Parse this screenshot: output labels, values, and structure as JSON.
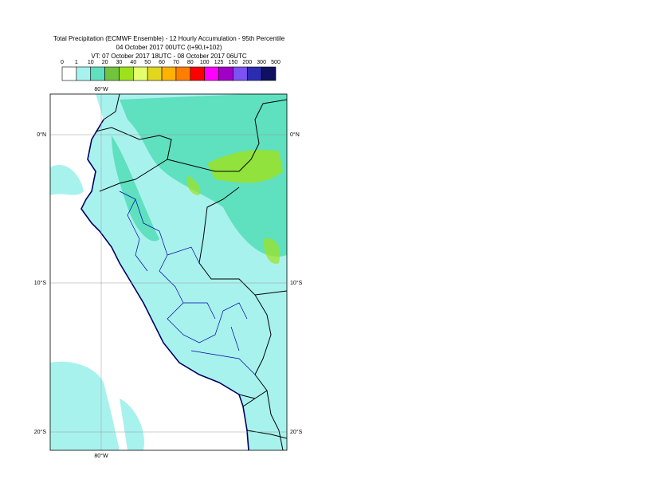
{
  "header": {
    "title": "Total Precipitation (ECMWF Ensemble) - 12 Hourly Accumulation - 95th Percentile",
    "base_time": "04 October 2017 00UTC (t+90,t+102)",
    "valid_time": "VT: 07 October 2017 18UTC - 08 October 2017 06UTC"
  },
  "legend": {
    "thresholds": [
      0,
      1,
      10,
      20,
      30,
      40,
      50,
      60,
      70,
      80,
      100,
      125,
      150,
      200,
      300,
      500
    ],
    "colors": [
      "#ffffff",
      "#a8f2ee",
      "#5fe0bf",
      "#72c43c",
      "#9ee21c",
      "#e4fe6c",
      "#e2d61e",
      "#ffb200",
      "#ff7e00",
      "#ff0000",
      "#ff00ff",
      "#a000c8",
      "#7c52f2",
      "#2c2cb2",
      "#101060"
    ]
  },
  "grid": {
    "lat_labels": [
      "0°N",
      "10°S",
      "20°S"
    ],
    "lon_labels": [
      "80°W"
    ]
  }
}
